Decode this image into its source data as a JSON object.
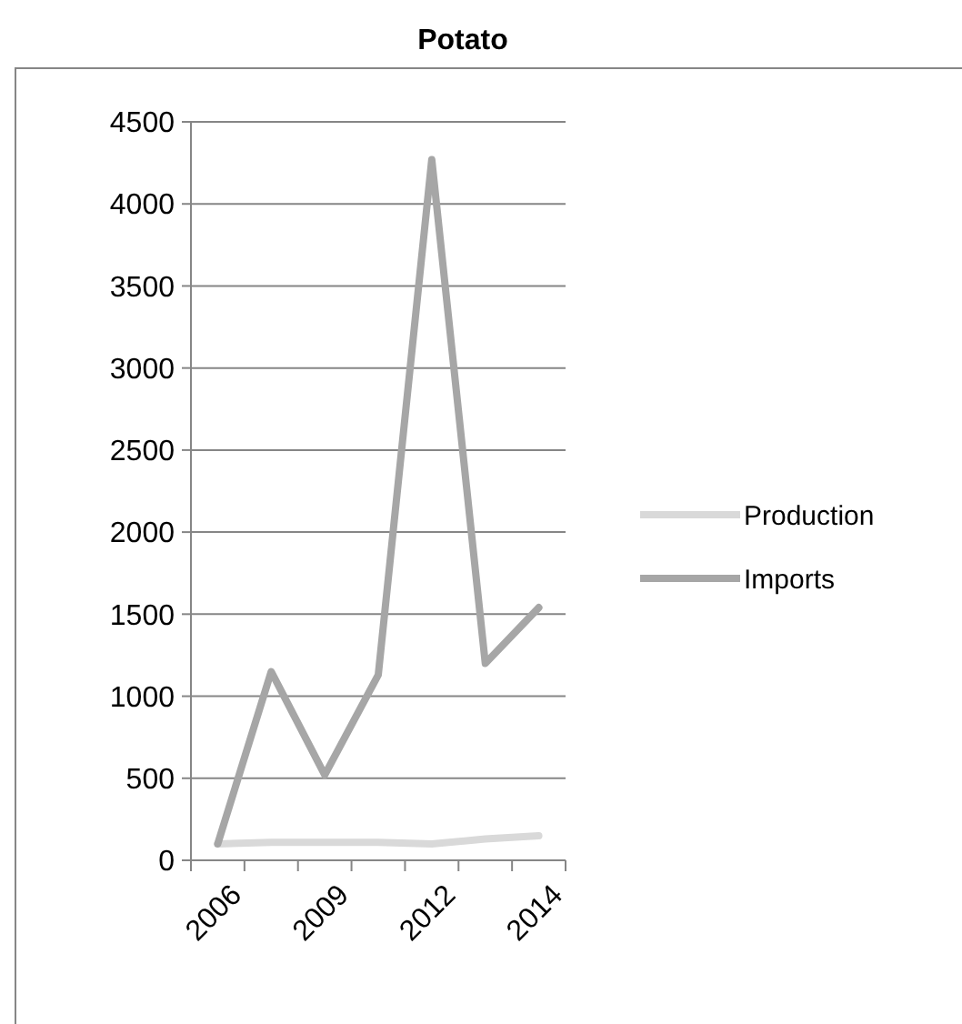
{
  "chart_data": {
    "type": "line",
    "title": "Potato",
    "categories": [
      "2006",
      null,
      "2009",
      null,
      "2012",
      null,
      "2014"
    ],
    "series": [
      {
        "name": "Production",
        "color": "#d9d9d9",
        "values": [
          100,
          110,
          110,
          110,
          100,
          130,
          150
        ]
      },
      {
        "name": "Imports",
        "color": "#a6a6a6",
        "values": [
          100,
          1150,
          520,
          1130,
          4270,
          1200,
          1540
        ]
      }
    ],
    "ylim": [
      0,
      4500
    ],
    "yticks": [
      0,
      500,
      1000,
      1500,
      2000,
      2500,
      3000,
      3500,
      4000,
      4500
    ],
    "grid": "y",
    "legend": "right",
    "marker": "none",
    "line_style": "solid"
  }
}
